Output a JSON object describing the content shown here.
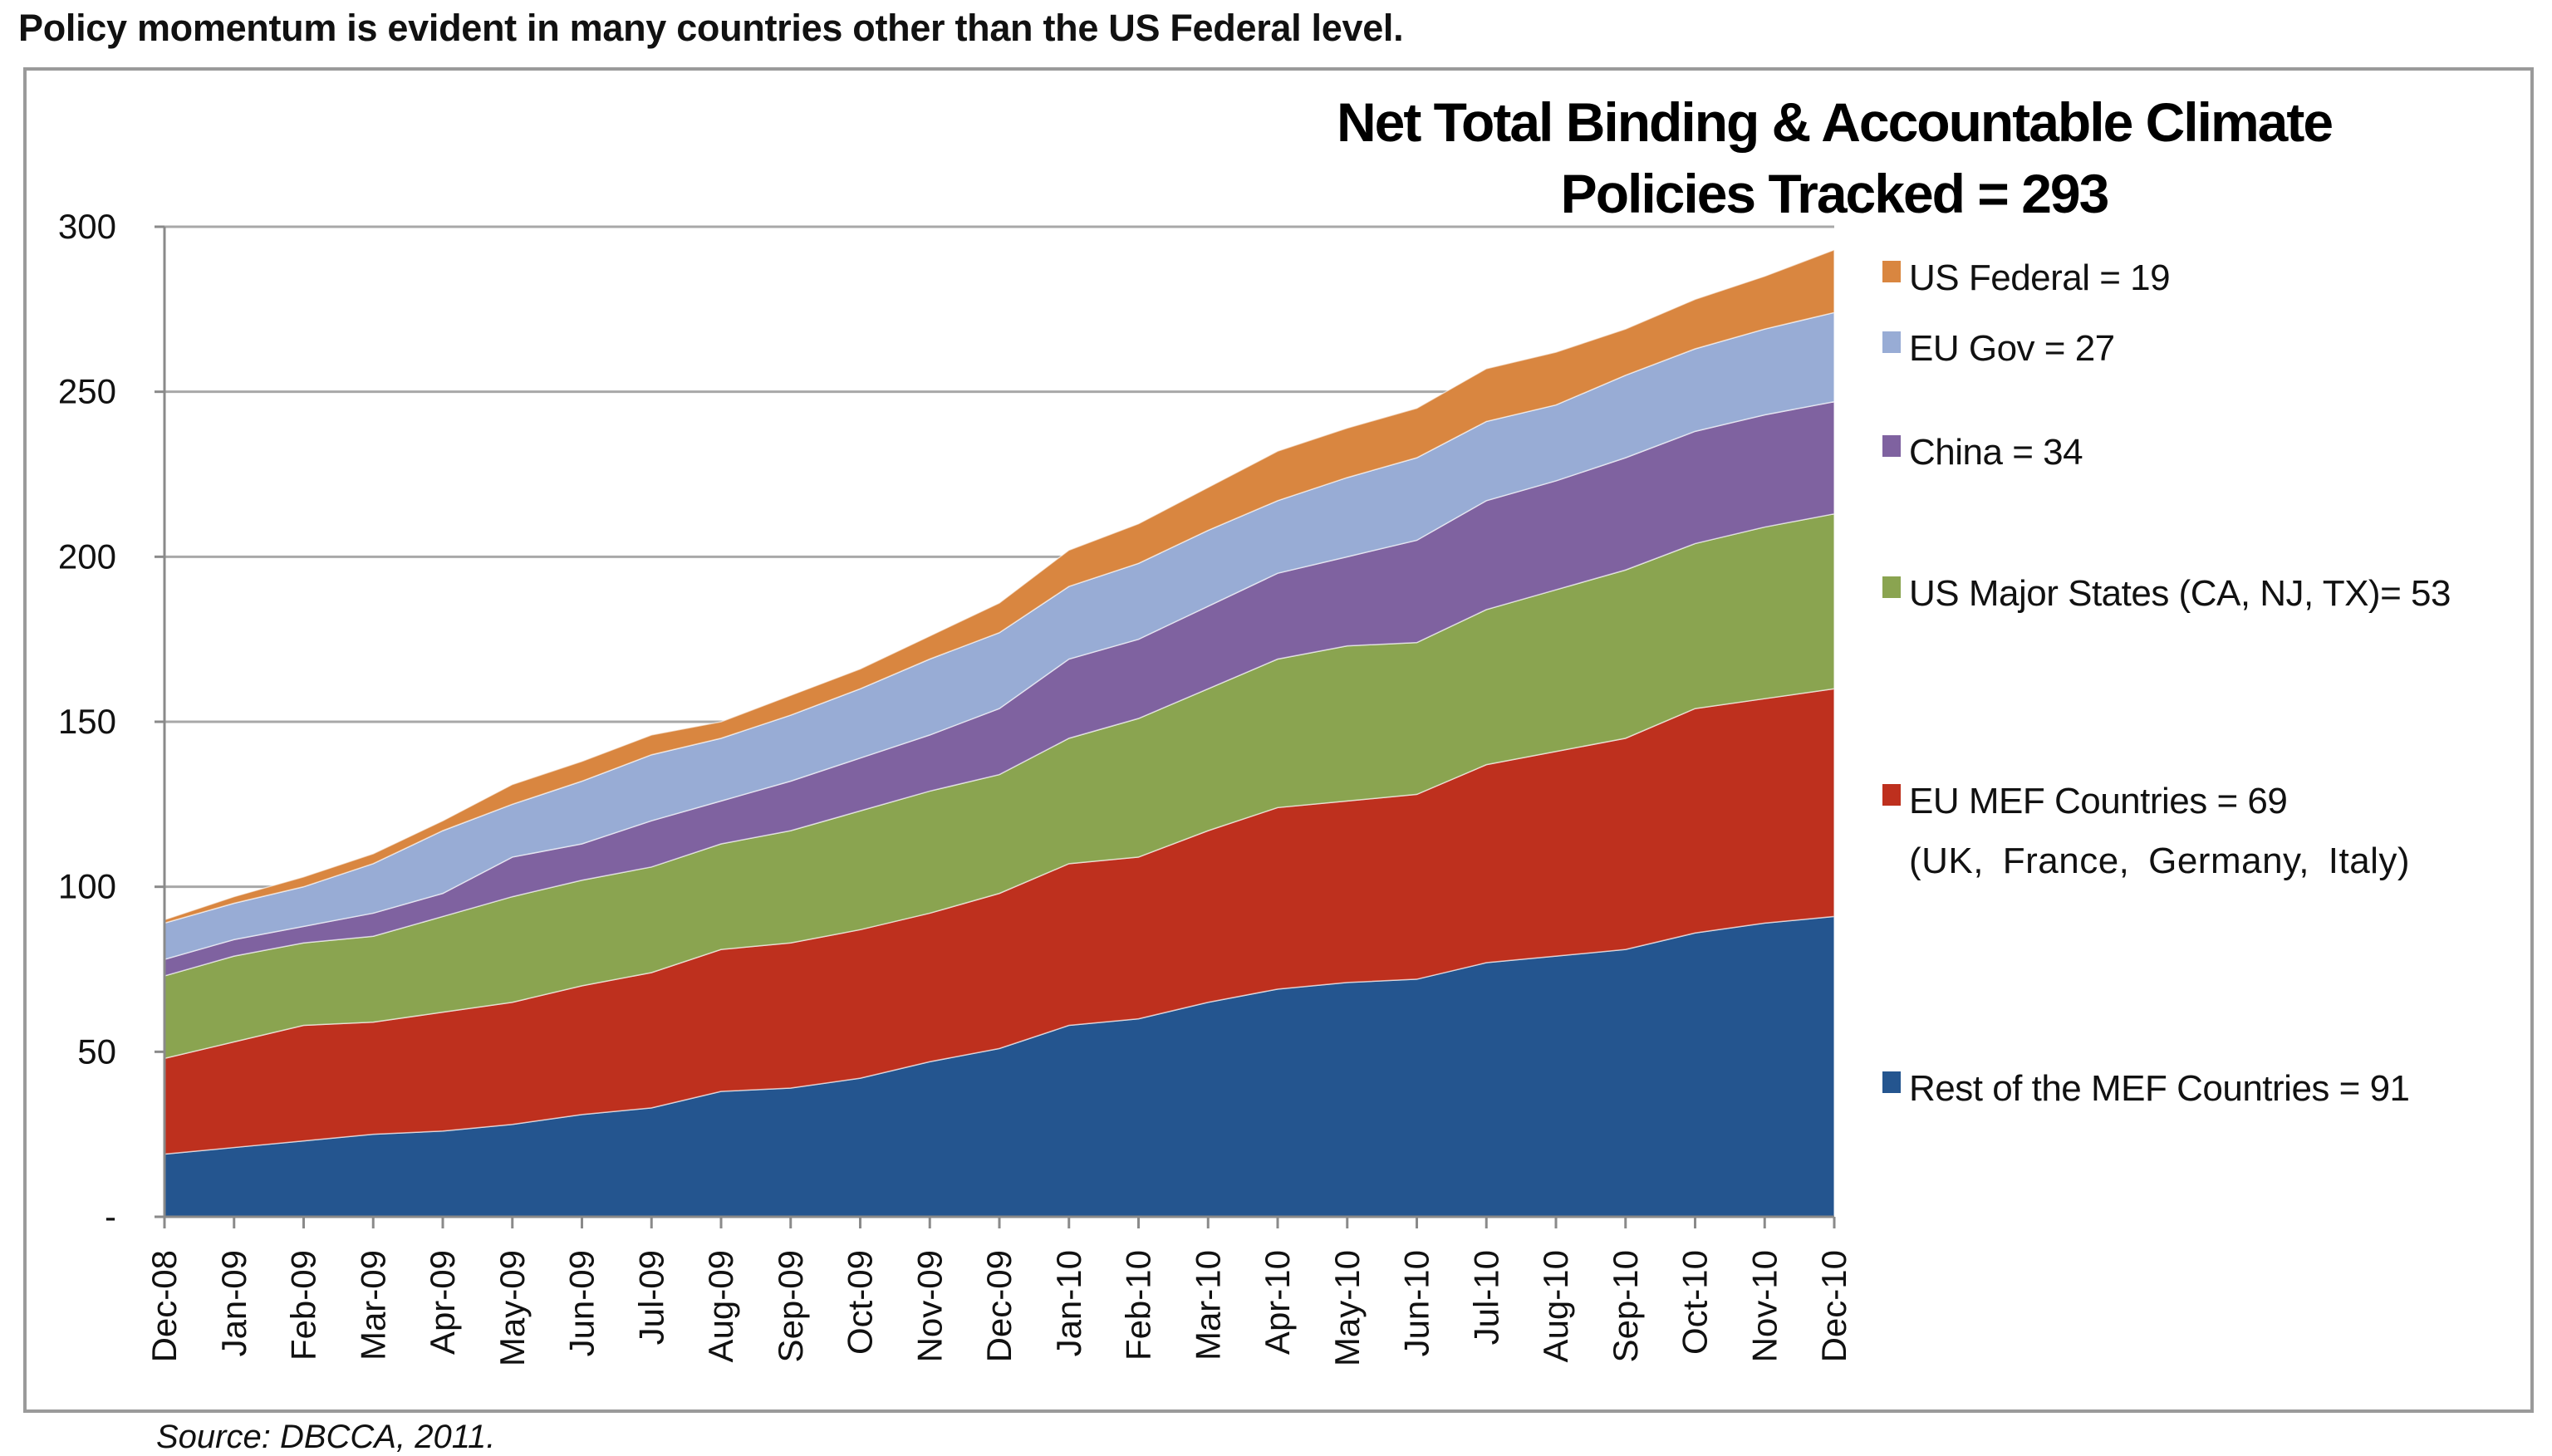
{
  "headline": "Policy momentum is evident in many countries other than the US Federal level.",
  "source": "Source: DBCCA, 2011.",
  "chart_data": {
    "type": "area",
    "stacked": true,
    "title": [
      "Net Total Binding & Accountable Climate",
      "Policies Tracked = 293"
    ],
    "xlabel": "",
    "ylabel": "",
    "ylim": [
      0,
      300
    ],
    "yticks": [
      0,
      50,
      100,
      150,
      200,
      250,
      300
    ],
    "ytick_labels": [
      "-",
      "50",
      "100",
      "150",
      "200",
      "250",
      "300"
    ],
    "grid": true,
    "legend_position": "right",
    "categories": [
      "Dec-08",
      "Jan-09",
      "Feb-09",
      "Mar-09",
      "Apr-09",
      "May-09",
      "Jun-09",
      "Jul-09",
      "Aug-09",
      "Sep-09",
      "Oct-09",
      "Nov-09",
      "Dec-09",
      "Jan-10",
      "Feb-10",
      "Mar-10",
      "Apr-10",
      "May-10",
      "Jun-10",
      "Jul-10",
      "Aug-10",
      "Sep-10",
      "Oct-10",
      "Nov-10",
      "Dec-10"
    ],
    "series": [
      {
        "name": "Rest of the MEF Countries",
        "legend": "Rest of the MEF Countries = 91",
        "color": "#24558f",
        "values": [
          19,
          21,
          23,
          25,
          26,
          28,
          31,
          33,
          38,
          39,
          42,
          47,
          51,
          58,
          60,
          65,
          69,
          71,
          72,
          77,
          79,
          81,
          86,
          89,
          91
        ]
      },
      {
        "name": "EU MEF Countries",
        "legend": "EU MEF Countries = 69",
        "legend_sub": "(UK, France, Germany, Italy)",
        "color": "#be301e",
        "values": [
          29,
          32,
          35,
          34,
          36,
          37,
          39,
          41,
          43,
          44,
          45,
          45,
          47,
          49,
          49,
          52,
          55,
          55,
          56,
          60,
          62,
          64,
          68,
          68,
          69
        ]
      },
      {
        "name": "US Major States (CA, NJ, TX)",
        "legend": "US Major States (CA, NJ, TX)= 53",
        "color": "#8aa450",
        "values": [
          25,
          26,
          25,
          26,
          29,
          32,
          32,
          32,
          32,
          34,
          36,
          37,
          36,
          38,
          42,
          43,
          45,
          47,
          46,
          47,
          49,
          51,
          50,
          52,
          53
        ]
      },
      {
        "name": "China",
        "legend": "China = 34",
        "color": "#7f62a0",
        "values": [
          5,
          5,
          5,
          7,
          7,
          12,
          11,
          14,
          13,
          15,
          16,
          17,
          20,
          24,
          24,
          25,
          26,
          27,
          31,
          33,
          33,
          34,
          34,
          34,
          34
        ]
      },
      {
        "name": "EU Gov",
        "legend": "EU Gov = 27",
        "color": "#98acd5",
        "values": [
          11,
          11,
          12,
          15,
          19,
          16,
          19,
          20,
          19,
          20,
          21,
          23,
          23,
          22,
          23,
          23,
          22,
          24,
          25,
          24,
          23,
          25,
          25,
          26,
          27
        ]
      },
      {
        "name": "US Federal",
        "legend": "US Federal = 19",
        "color": "#d98640",
        "values": [
          1,
          2,
          3,
          3,
          3,
          6,
          6,
          6,
          5,
          6,
          6,
          7,
          9,
          11,
          12,
          13,
          15,
          15,
          15,
          16,
          16,
          14,
          15,
          16,
          19
        ]
      }
    ]
  }
}
